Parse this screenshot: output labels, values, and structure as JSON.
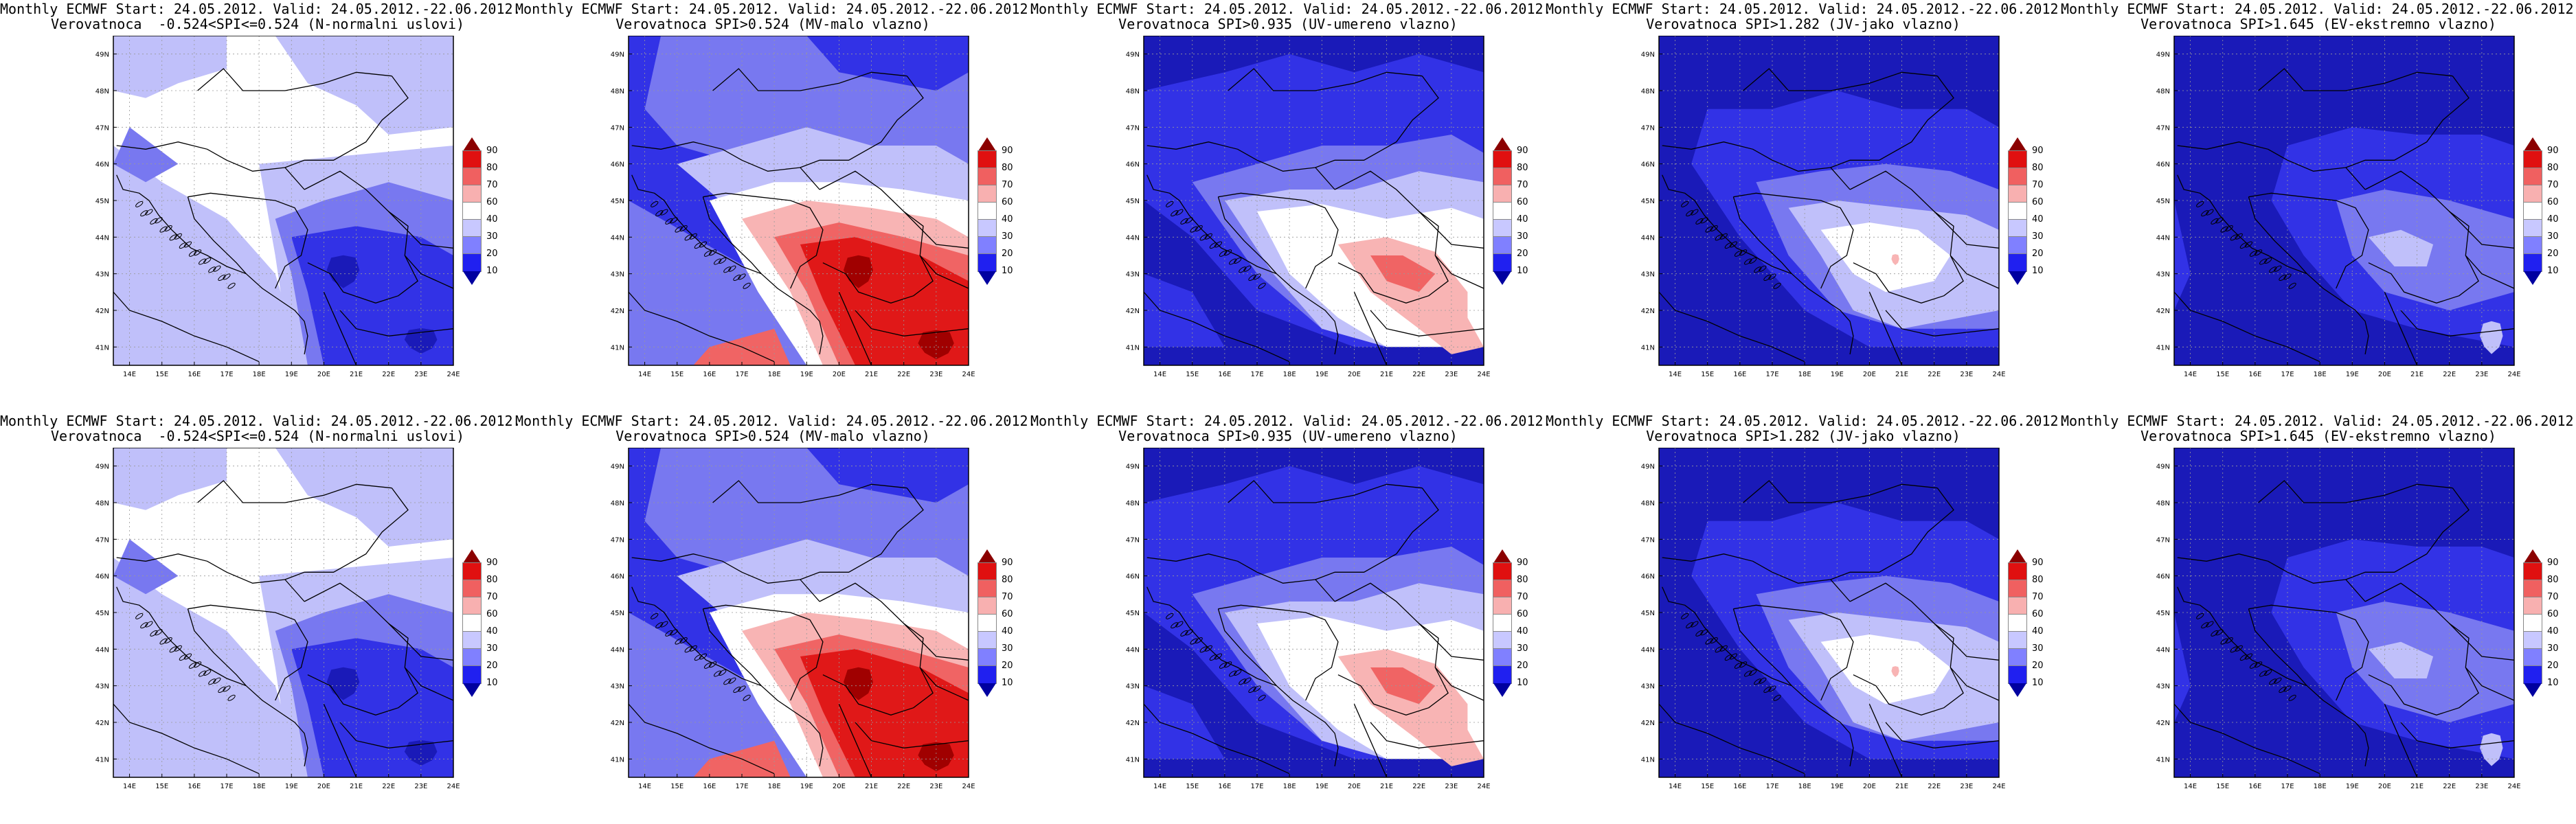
{
  "panels": [
    {
      "title_line1": "Monthly ECMWF Start: 24.05.2012. Valid: 24.05.2012.-22.06.2012.",
      "title_line2": "Verovatnoca  -0.524<SPI<=0.524 (N-normalni uslovi)",
      "scheme": "normal"
    },
    {
      "title_line1": "Monthly ECMWF Start: 24.05.2012. Valid: 24.05.2012.-22.06.2012.",
      "title_line2": "Verovatnoca SPI>0.524 (MV-malo vlazno)",
      "scheme": "mv"
    },
    {
      "title_line1": "Monthly ECMWF Start: 24.05.2012. Valid: 24.05.2012.-22.06.2012.",
      "title_line2": "Verovatnoca SPI>0.935 (UV-umereno vlazno)",
      "scheme": "uv"
    },
    {
      "title_line1": "Monthly ECMWF Start: 24.05.2012. Valid: 24.05.2012.-22.06.2012.",
      "title_line2": "Verovatnoca SPI>1.282 (JV-jako vlazno)",
      "scheme": "jv"
    },
    {
      "title_line1": "Monthly ECMWF Start: 24.05.2012. Valid: 24.05.2012.-22.06.2012.",
      "title_line2": "Verovatnoca SPI>1.645 (EV-ekstremno vlazno)",
      "scheme": "ev"
    },
    {
      "title_line1": "Monthly ECMWF Start: 24.05.2012. Valid: 24.05.2012.-22.06.2012.",
      "title_line2": "Verovatnoca  -0.524<SPI<=0.524 (N-normalni uslovi)",
      "scheme": "normal"
    },
    {
      "title_line1": "Monthly ECMWF Start: 24.05.2012. Valid: 24.05.2012.-22.06.2012.",
      "title_line2": "Verovatnoca SPI>0.524 (MV-malo vlazno)",
      "scheme": "mv"
    },
    {
      "title_line1": "Monthly ECMWF Start: 24.05.2012. Valid: 24.05.2012.-22.06.2012.",
      "title_line2": "Verovatnoca SPI>0.935 (UV-umereno vlazno)",
      "scheme": "uv"
    },
    {
      "title_line1": "Monthly ECMWF Start: 24.05.2012. Valid: 24.05.2012.-22.06.2012.",
      "title_line2": "Verovatnoca SPI>1.282 (JV-jako vlazno)",
      "scheme": "jv"
    },
    {
      "title_line1": "Monthly ECMWF Start: 24.05.2012. Valid: 24.05.2012.-22.06.2012.",
      "title_line2": "Verovatnoca SPI>1.645 (EV-ekstremno vlazno)",
      "scheme": "ev"
    }
  ],
  "lat_labels": [
    "49N",
    "48N",
    "47N",
    "46N",
    "45N",
    "44N",
    "43N",
    "42N",
    "41N"
  ],
  "lon_labels": [
    "14E",
    "15E",
    "16E",
    "17E",
    "18E",
    "19E",
    "20E",
    "21E",
    "22E",
    "23E",
    "24E"
  ],
  "colorbar_labels": [
    "90",
    "80",
    "70",
    "60",
    "40",
    "30",
    "20",
    "10"
  ],
  "colorbar_colors": [
    "#a80000",
    "#e01010",
    "#f06060",
    "#f8b0b0",
    "#ffffff",
    "#c8c8ff",
    "#8080ff",
    "#2020f0",
    "#0000a0"
  ],
  "colors": {
    "deep_blue": "#1a1ab8",
    "blue": "#3232e6",
    "mid_blue": "#7878f0",
    "light_blue": "#c0c0fa",
    "white": "#ffffff",
    "pink": "#f8b4b4",
    "light_red": "#f06464",
    "red": "#e01818",
    "dark_red": "#a00000"
  }
}
